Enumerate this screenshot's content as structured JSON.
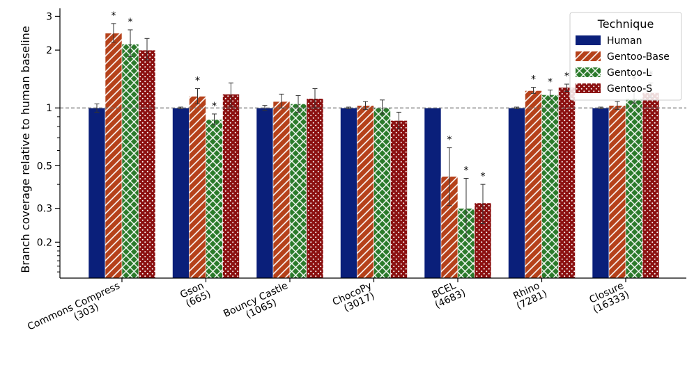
{
  "chart_data": {
    "type": "bar",
    "title": "",
    "xlabel": "",
    "ylabel": "Branch coverage relative to human baseline",
    "yscale": "log",
    "ylim": [
      0.13,
      3.3
    ],
    "yticks": [
      0.2,
      0.3,
      0.5,
      1,
      2,
      3
    ],
    "ytick_labels": [
      "0.2",
      "0.3",
      "0.5",
      "1",
      "2",
      "3"
    ],
    "reference_line": 1,
    "categories": [
      "Commons Compress\n(303)",
      "Gson\n(665)",
      "Bouncy Castle\n(1065)",
      "ChocoPy\n(3017)",
      "BCEL\n(4683)",
      "Rhino\n(7281)",
      "Closure\n(16333)"
    ],
    "legend": {
      "title": "Technique",
      "placement": "top-right"
    },
    "series": [
      {
        "name": "Human",
        "color": "#0a1f7a",
        "pattern": "solid",
        "values": [
          1.0,
          1.0,
          1.0,
          1.0,
          1.0,
          1.0,
          1.0
        ],
        "err_low": [
          0.95,
          0.99,
          0.97,
          0.99,
          1.0,
          0.99,
          0.99
        ],
        "err_high": [
          1.05,
          1.01,
          1.03,
          1.01,
          1.0,
          1.01,
          1.01
        ],
        "significant": [
          false,
          false,
          false,
          false,
          false,
          false,
          false
        ]
      },
      {
        "name": "Gentoo-Base",
        "color": "#b5411a",
        "pattern": "diagonal",
        "values": [
          2.45,
          1.15,
          1.08,
          1.03,
          0.44,
          1.23,
          1.03
        ],
        "err_low": [
          2.2,
          1.05,
          1.0,
          0.98,
          0.31,
          1.19,
          0.98
        ],
        "err_high": [
          2.75,
          1.26,
          1.18,
          1.08,
          0.62,
          1.28,
          1.08
        ],
        "significant": [
          true,
          true,
          false,
          false,
          true,
          true,
          false
        ]
      },
      {
        "name": "Gentoo-L",
        "color": "#2a7a2a",
        "pattern": "crosshatch",
        "values": [
          2.15,
          0.87,
          1.05,
          1.0,
          0.3,
          1.17,
          1.12
        ],
        "err_low": [
          1.85,
          0.82,
          0.95,
          0.93,
          0.21,
          1.11,
          1.06
        ],
        "err_high": [
          2.55,
          0.93,
          1.16,
          1.1,
          0.43,
          1.24,
          1.28
        ],
        "significant": [
          true,
          true,
          false,
          false,
          true,
          true,
          true
        ]
      },
      {
        "name": "Gentoo-S",
        "color": "#8b1010",
        "pattern": "dots",
        "values": [
          2.0,
          1.18,
          1.12,
          0.86,
          0.32,
          1.28,
          1.2
        ],
        "err_low": [
          1.78,
          1.02,
          1.0,
          0.78,
          0.25,
          1.22,
          1.13
        ],
        "err_high": [
          2.3,
          1.35,
          1.26,
          0.95,
          0.4,
          1.33,
          1.35
        ],
        "significant": [
          false,
          false,
          false,
          false,
          true,
          true,
          true
        ]
      }
    ]
  }
}
